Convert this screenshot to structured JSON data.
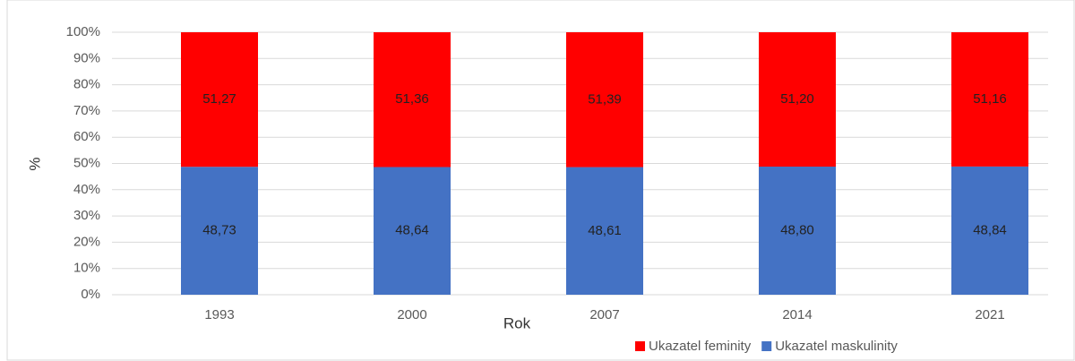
{
  "chart_data": {
    "type": "stacked_bar",
    "categories": [
      "1993",
      "2000",
      "2007",
      "2014",
      "2021"
    ],
    "series": [
      {
        "name": "Ukazatel maskulinity",
        "color": "#4472c4",
        "values": [
          48.73,
          48.64,
          48.61,
          48.8,
          48.84
        ],
        "value_labels": [
          "48,73",
          "48,64",
          "48,61",
          "48,80",
          "48,84"
        ]
      },
      {
        "name": "Ukazatel feminity",
        "color": "#ff0000",
        "values": [
          51.27,
          51.36,
          51.39,
          51.2,
          51.16
        ],
        "value_labels": [
          "51,27",
          "51,36",
          "51,39",
          "51,20",
          "51,16"
        ]
      }
    ],
    "ylim": [
      0,
      100
    ],
    "yticks": [
      {
        "value": 0,
        "label": "0%"
      },
      {
        "value": 10,
        "label": "10%"
      },
      {
        "value": 20,
        "label": "20%"
      },
      {
        "value": 30,
        "label": "30%"
      },
      {
        "value": 40,
        "label": "40%"
      },
      {
        "value": 50,
        "label": "50%"
      },
      {
        "value": 60,
        "label": "60%"
      },
      {
        "value": 70,
        "label": "70%"
      },
      {
        "value": 80,
        "label": "80%"
      },
      {
        "value": 90,
        "label": "90%"
      },
      {
        "value": 100,
        "label": "100%"
      }
    ],
    "ylabel": "%",
    "xlabel": "Rok",
    "grid": true,
    "legend": "bottom-right"
  }
}
